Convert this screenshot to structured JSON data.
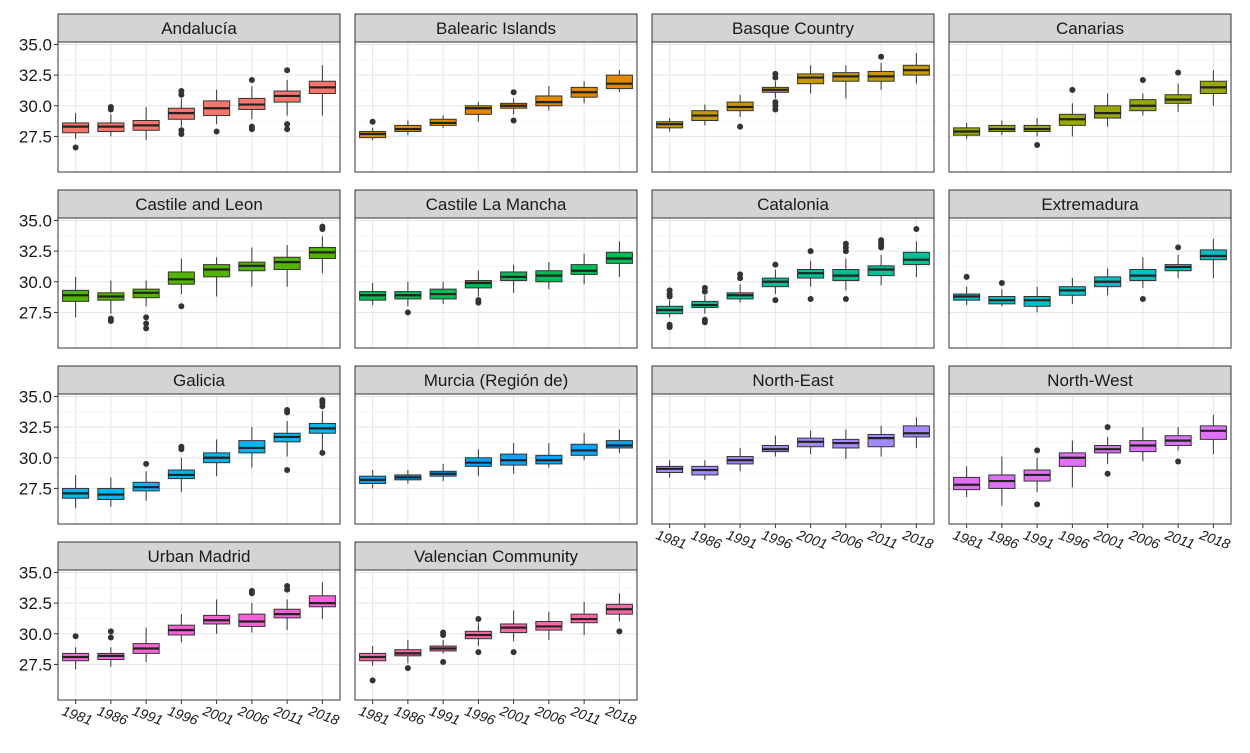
{
  "chart_data": {
    "type": "box",
    "categories": [
      "1981",
      "1986",
      "1991",
      "1996",
      "2001",
      "2006",
      "2011",
      "2018"
    ],
    "ylim": [
      24.6,
      35.2
    ],
    "yticks": [
      {
        "value": 27.5,
        "label": "27.5"
      },
      {
        "value": 30,
        "label": "30.0"
      },
      {
        "value": 32.5,
        "label": "32.5"
      },
      {
        "value": 35,
        "label": "35.0"
      }
    ],
    "grid": true,
    "facets": [
      {
        "title": "Andalucía",
        "color": "#F8766D",
        "whisker_low": [
          27.3,
          27.5,
          27.2,
          28.3,
          28.5,
          28.9,
          29.2,
          29.2
        ],
        "q1": [
          27.8,
          27.9,
          28.0,
          28.9,
          29.2,
          29.7,
          30.3,
          31.0
        ],
        "median": [
          28.3,
          28.3,
          28.4,
          29.4,
          29.8,
          30.1,
          30.8,
          31.5
        ],
        "q3": [
          28.6,
          28.6,
          28.8,
          29.8,
          30.4,
          30.6,
          31.2,
          32.0
        ],
        "whisker_high": [
          29.4,
          29.3,
          29.9,
          30.6,
          31.3,
          31.6,
          32.1,
          33.3
        ],
        "outliers": [
          [
            26.6
          ],
          [
            29.7,
            29.9
          ],
          [],
          [
            27.7,
            28.0,
            30.9,
            31.2
          ],
          [
            27.9
          ],
          [
            28.1,
            28.3,
            32.1
          ],
          [
            28.1,
            28.5,
            32.9
          ],
          []
        ]
      },
      {
        "title": "Balearic Islands",
        "color": "#E38900",
        "whisker_low": [
          27.2,
          27.6,
          28.2,
          28.7,
          29.3,
          29.6,
          30.2,
          31.1
        ],
        "q1": [
          27.4,
          27.9,
          28.4,
          29.3,
          29.8,
          30.0,
          30.7,
          31.4
        ],
        "median": [
          27.7,
          28.1,
          28.6,
          29.8,
          30.0,
          30.3,
          31.1,
          31.8
        ],
        "q3": [
          27.9,
          28.4,
          28.9,
          30.0,
          30.2,
          30.8,
          31.5,
          32.5
        ],
        "whisker_high": [
          28.2,
          28.8,
          29.2,
          30.3,
          30.6,
          31.6,
          32.0,
          32.9
        ],
        "outliers": [
          [
            28.7
          ],
          [],
          [],
          [],
          [
            28.8,
            31.1
          ],
          [],
          [],
          []
        ]
      },
      {
        "title": "Basque Country",
        "color": "#C49A00",
        "whisker_low": [
          27.9,
          28.4,
          29.1,
          30.6,
          31.0,
          30.6,
          31.3,
          31.8
        ],
        "q1": [
          28.2,
          28.8,
          29.6,
          31.1,
          31.8,
          32.0,
          32.0,
          32.5
        ],
        "median": [
          28.5,
          29.2,
          29.9,
          31.3,
          32.3,
          32.4,
          32.4,
          32.9
        ],
        "q3": [
          28.7,
          29.6,
          30.3,
          31.5,
          32.6,
          32.7,
          32.8,
          33.3
        ],
        "whisker_high": [
          29.0,
          30.1,
          30.9,
          32.0,
          33.3,
          33.3,
          33.5,
          34.3
        ],
        "outliers": [
          [],
          [],
          [
            28.3
          ],
          [
            29.7,
            30.0,
            30.3,
            32.3,
            32.6
          ],
          [],
          [],
          [
            34.0
          ],
          []
        ]
      },
      {
        "title": "Canarias",
        "color": "#99A800",
        "whisker_low": [
          27.3,
          27.6,
          27.5,
          27.5,
          28.3,
          29.2,
          29.5,
          30.0
        ],
        "q1": [
          27.6,
          27.9,
          27.9,
          28.4,
          29.0,
          29.6,
          30.2,
          31.0
        ],
        "median": [
          27.9,
          28.1,
          28.1,
          28.9,
          29.4,
          30.0,
          30.5,
          31.5
        ],
        "q3": [
          28.2,
          28.4,
          28.4,
          29.3,
          30.0,
          30.5,
          30.9,
          32.0
        ],
        "whisker_high": [
          28.6,
          28.8,
          29.0,
          30.2,
          31.0,
          31.0,
          31.8,
          32.9
        ],
        "outliers": [
          [],
          [],
          [
            26.8
          ],
          [
            31.3
          ],
          [],
          [
            32.1
          ],
          [
            32.7
          ],
          []
        ]
      },
      {
        "title": "Castile and Leon",
        "color": "#53B400",
        "whisker_low": [
          27.1,
          27.4,
          28.0,
          29.0,
          28.8,
          29.6,
          29.6,
          30.7
        ],
        "q1": [
          28.4,
          28.5,
          28.7,
          29.8,
          30.4,
          30.9,
          31.0,
          31.9
        ],
        "median": [
          28.9,
          28.8,
          29.1,
          30.2,
          31.0,
          31.3,
          31.6,
          32.4
        ],
        "q3": [
          29.3,
          29.1,
          29.4,
          30.8,
          31.4,
          31.6,
          32.0,
          32.8
        ],
        "whisker_high": [
          30.4,
          30.1,
          30.1,
          31.9,
          32.0,
          32.8,
          33.0,
          33.7
        ],
        "outliers": [
          [],
          [
            26.8,
            27.0
          ],
          [
            26.2,
            26.6,
            27.1
          ],
          [
            28.0
          ],
          [],
          [],
          [],
          [
            34.3,
            34.5
          ]
        ]
      },
      {
        "title": "Castile La Mancha",
        "color": "#00BC56",
        "whisker_low": [
          28.1,
          28.0,
          28.2,
          28.8,
          29.1,
          29.4,
          29.8,
          30.4
        ],
        "q1": [
          28.5,
          28.6,
          28.6,
          29.5,
          30.1,
          30.0,
          30.6,
          31.5
        ],
        "median": [
          28.9,
          28.9,
          29.0,
          29.9,
          30.4,
          30.5,
          30.9,
          31.9
        ],
        "q3": [
          29.2,
          29.2,
          29.4,
          30.1,
          30.8,
          30.9,
          31.4,
          32.4
        ],
        "whisker_high": [
          29.9,
          30.0,
          30.0,
          30.9,
          31.4,
          31.6,
          32.3,
          33.3
        ],
        "outliers": [
          [],
          [
            27.5
          ],
          [],
          [
            28.3,
            28.5
          ],
          [],
          [],
          [],
          []
        ]
      },
      {
        "title": "Catalonia",
        "color": "#00C094",
        "whisker_low": [
          27.1,
          27.4,
          28.3,
          29.0,
          29.6,
          29.3,
          29.7,
          30.4
        ],
        "q1": [
          27.4,
          27.9,
          28.6,
          29.6,
          30.3,
          30.1,
          30.5,
          31.4
        ],
        "median": [
          27.7,
          28.1,
          28.9,
          30.0,
          30.7,
          30.5,
          31.0,
          31.8
        ],
        "q3": [
          28.0,
          28.4,
          29.1,
          30.3,
          31.0,
          31.0,
          31.3,
          32.4
        ],
        "whisker_high": [
          28.5,
          28.9,
          29.8,
          31.0,
          31.7,
          31.9,
          32.2,
          33.3
        ],
        "outliers": [
          [
            26.3,
            26.5,
            28.8,
            29.0,
            29.3
          ],
          [
            26.7,
            26.9,
            29.2,
            29.5
          ],
          [
            30.3,
            30.6
          ],
          [
            28.5,
            31.4
          ],
          [
            28.6,
            32.5
          ],
          [
            28.6,
            32.5,
            32.8,
            33.1
          ],
          [
            32.8,
            33.0,
            33.2,
            33.4
          ],
          [
            34.3
          ]
        ]
      },
      {
        "title": "Extremadura",
        "color": "#00BFC4",
        "whisker_low": [
          28.1,
          28.0,
          27.5,
          28.2,
          28.9,
          29.5,
          30.3,
          30.3
        ],
        "q1": [
          28.5,
          28.2,
          28.0,
          28.9,
          29.6,
          30.1,
          30.9,
          31.8
        ],
        "median": [
          28.8,
          28.5,
          28.5,
          29.3,
          30.0,
          30.5,
          31.2,
          32.1
        ],
        "q3": [
          29.0,
          28.8,
          28.8,
          29.6,
          30.4,
          31.0,
          31.4,
          32.6
        ],
        "whisker_high": [
          29.6,
          29.4,
          29.6,
          30.3,
          31.1,
          32.0,
          32.2,
          33.5
        ],
        "outliers": [
          [
            30.4
          ],
          [
            29.9
          ],
          [],
          [],
          [],
          [
            28.6
          ],
          [
            32.8
          ],
          []
        ]
      },
      {
        "title": "Galicia",
        "color": "#00B6EB",
        "whisker_low": [
          25.9,
          26.0,
          26.5,
          27.2,
          28.5,
          29.2,
          30.1,
          30.6
        ],
        "q1": [
          26.7,
          26.6,
          27.3,
          28.3,
          29.6,
          30.4,
          31.3,
          32.0
        ],
        "median": [
          27.1,
          27.0,
          27.6,
          28.6,
          30.0,
          30.8,
          31.7,
          32.4
        ],
        "q3": [
          27.5,
          27.5,
          28.0,
          29.0,
          30.4,
          31.4,
          32.0,
          32.8
        ],
        "whisker_high": [
          28.6,
          28.4,
          28.9,
          30.0,
          31.5,
          32.5,
          33.0,
          33.8
        ],
        "outliers": [
          [],
          [],
          [
            29.5
          ],
          [
            30.7,
            30.9
          ],
          [],
          [],
          [
            29.0,
            33.7,
            33.9
          ],
          [
            30.4,
            34.2,
            34.5,
            34.7
          ]
        ]
      },
      {
        "title": "Murcia (Región de)",
        "color": "#06A4FF",
        "whisker_low": [
          27.5,
          27.9,
          28.1,
          28.5,
          28.7,
          29.2,
          29.8,
          30.4
        ],
        "q1": [
          27.9,
          28.2,
          28.5,
          29.3,
          29.4,
          29.5,
          30.2,
          30.8
        ],
        "median": [
          28.2,
          28.4,
          28.7,
          29.6,
          29.8,
          29.8,
          30.6,
          31.0
        ],
        "q3": [
          28.5,
          28.6,
          28.9,
          30.0,
          30.3,
          30.2,
          31.1,
          31.4
        ],
        "whisker_high": [
          29.0,
          29.0,
          29.5,
          30.7,
          31.2,
          31.2,
          32.0,
          32.3
        ],
        "outliers": [
          [],
          [],
          [],
          [],
          [],
          [],
          [],
          []
        ]
      },
      {
        "title": "North-East",
        "color": "#A58AFF",
        "whisker_low": [
          28.4,
          28.2,
          28.9,
          30.1,
          30.3,
          29.9,
          30.1,
          30.8
        ],
        "q1": [
          28.8,
          28.6,
          29.5,
          30.5,
          30.9,
          30.8,
          30.9,
          31.7
        ],
        "median": [
          29.1,
          29.0,
          29.8,
          30.7,
          31.3,
          31.2,
          31.6,
          32.0
        ],
        "q3": [
          29.3,
          29.3,
          30.1,
          31.0,
          31.6,
          31.5,
          31.9,
          32.6
        ],
        "whisker_high": [
          29.8,
          29.8,
          30.8,
          31.8,
          32.2,
          32.3,
          32.6,
          33.3
        ],
        "outliers": [
          [],
          [],
          [],
          [],
          [],
          [],
          [],
          []
        ]
      },
      {
        "title": "North-West",
        "color": "#DF70F8",
        "whisker_low": [
          26.8,
          26.1,
          27.2,
          27.6,
          29.5,
          29.7,
          30.6,
          30.3
        ],
        "q1": [
          27.4,
          27.5,
          28.1,
          29.3,
          30.4,
          30.5,
          31.0,
          31.5
        ],
        "median": [
          27.8,
          28.1,
          28.6,
          30.0,
          30.7,
          31.0,
          31.4,
          32.2
        ],
        "q3": [
          28.4,
          28.6,
          29.0,
          30.4,
          31.0,
          31.4,
          31.8,
          32.6
        ],
        "whisker_high": [
          29.3,
          30.1,
          30.0,
          31.4,
          31.7,
          32.5,
          32.5,
          33.5
        ],
        "outliers": [
          [],
          [],
          [
            26.2,
            30.6
          ],
          [],
          [
            28.7,
            32.5
          ],
          [],
          [
            29.7
          ],
          []
        ]
      },
      {
        "title": "Urban Madrid",
        "color": "#FB61D7",
        "whisker_low": [
          27.1,
          27.3,
          27.7,
          29.3,
          30.0,
          30.1,
          30.3,
          31.2
        ],
        "q1": [
          27.8,
          27.9,
          28.4,
          29.9,
          30.8,
          30.6,
          31.3,
          32.2
        ],
        "median": [
          28.1,
          28.2,
          28.8,
          30.3,
          31.1,
          31.0,
          31.6,
          32.5
        ],
        "q3": [
          28.4,
          28.4,
          29.2,
          30.7,
          31.5,
          31.6,
          32.0,
          33.1
        ],
        "whisker_high": [
          28.9,
          28.9,
          30.5,
          31.6,
          32.8,
          32.5,
          32.8,
          34.2
        ],
        "outliers": [
          [
            29.8
          ],
          [
            29.7,
            30.2
          ],
          [],
          [],
          [],
          [
            33.3,
            33.5
          ],
          [
            33.6,
            33.9
          ],
          []
        ]
      },
      {
        "title": "Valencian Community",
        "color": "#FF66A8",
        "whisker_low": [
          27.4,
          27.6,
          28.4,
          29.0,
          29.4,
          29.5,
          29.9,
          31.0
        ],
        "q1": [
          27.8,
          28.2,
          28.6,
          29.6,
          30.1,
          30.3,
          30.9,
          31.6
        ],
        "median": [
          28.1,
          28.4,
          28.8,
          29.9,
          30.5,
          30.6,
          31.2,
          32.0
        ],
        "q3": [
          28.4,
          28.7,
          29.0,
          30.2,
          30.8,
          31.0,
          31.6,
          32.4
        ],
        "whisker_high": [
          29.0,
          29.5,
          29.5,
          30.9,
          31.9,
          31.8,
          32.6,
          33.3
        ],
        "outliers": [
          [
            26.2
          ],
          [
            27.2
          ],
          [
            27.7,
            29.9,
            30.1
          ],
          [
            28.5,
            31.2
          ],
          [
            28.5
          ],
          [],
          [],
          [
            30.2
          ]
        ]
      }
    ]
  }
}
